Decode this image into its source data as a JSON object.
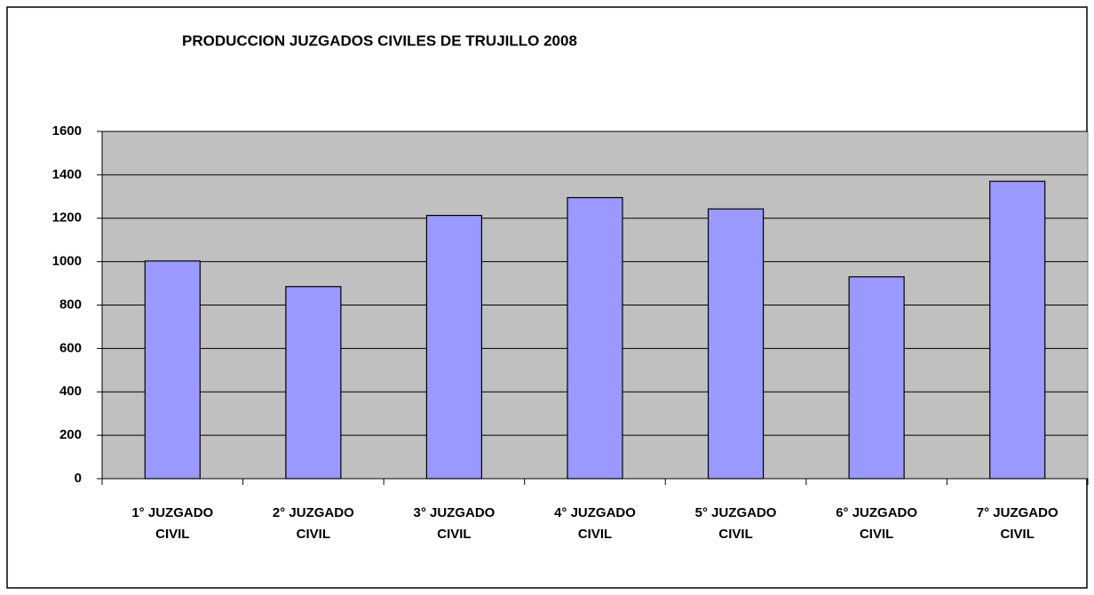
{
  "chart_data": {
    "type": "bar",
    "title": "PRODUCCION JUZGADOS CIVILES DE TRUJILLO 2008",
    "categories": [
      "1° JUZGADO CIVIL",
      "2° JUZGADO CIVIL",
      "3° JUZGADO CIVIL",
      "4° JUZGADO CIVIL",
      "5° JUZGADO CIVIL",
      "6° JUZGADO CIVIL",
      "7° JUZGADO CIVIL"
    ],
    "values": [
      1003,
      885,
      1213,
      1295,
      1243,
      930,
      1370
    ],
    "color": "#9999ff",
    "ylim": [
      0,
      1600
    ],
    "yticks": [
      0,
      200,
      400,
      600,
      800,
      1000,
      1200,
      1400,
      1600
    ],
    "grid": true
  }
}
